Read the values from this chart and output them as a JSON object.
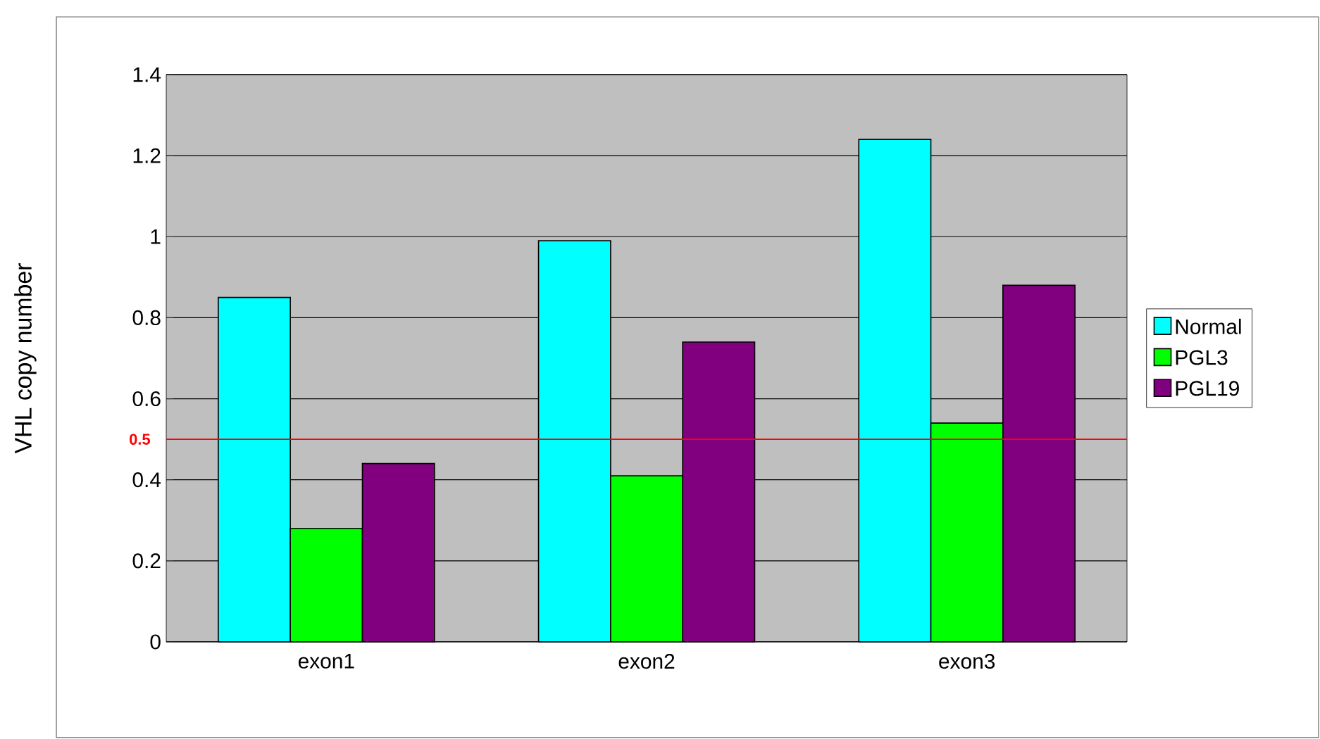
{
  "chart_data": {
    "type": "bar",
    "ylabel": "VHL copy number",
    "categories": [
      "exon1",
      "exon2",
      "exon3"
    ],
    "series": [
      {
        "name": "Normal",
        "color": "#00ffff",
        "values": [
          0.85,
          0.99,
          1.24
        ]
      },
      {
        "name": "PGL3",
        "color": "#00ff00",
        "values": [
          0.28,
          0.41,
          0.54
        ]
      },
      {
        "name": "PGL19",
        "color": "#800080",
        "values": [
          0.44,
          0.74,
          0.88
        ]
      }
    ],
    "ylim": [
      0,
      1.4
    ],
    "yticks": [
      0,
      0.2,
      0.4,
      0.6,
      0.8,
      1,
      1.2,
      1.4
    ],
    "grid": "y",
    "legend": "right",
    "ref_lines": [
      {
        "axis": "y",
        "value": 0.5,
        "label": "0.5",
        "color": "#ff0000"
      }
    ]
  }
}
